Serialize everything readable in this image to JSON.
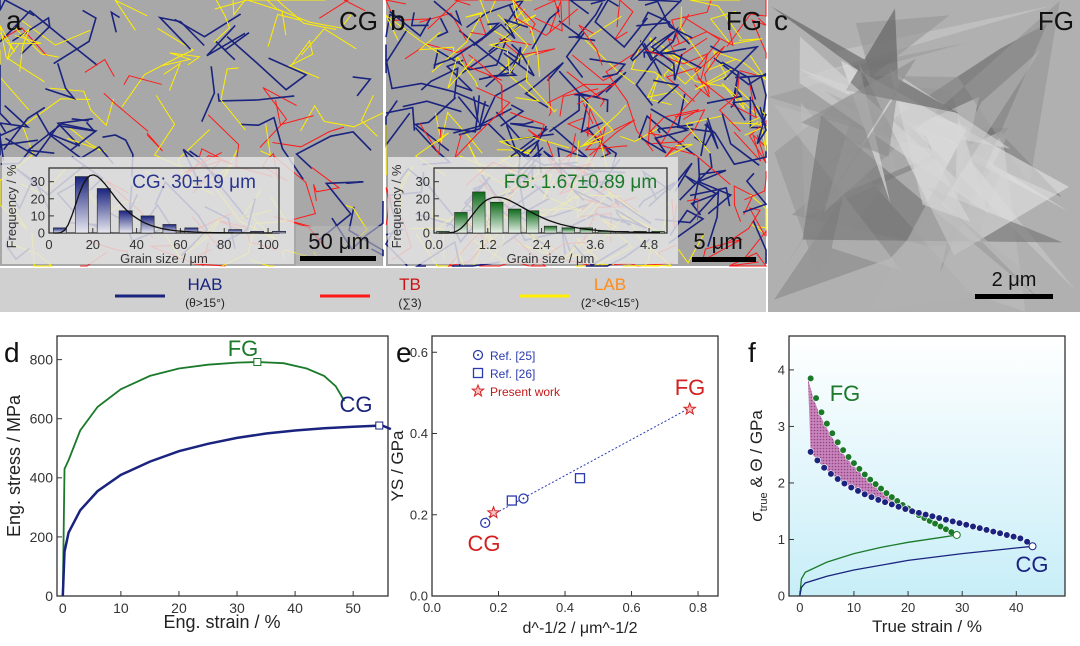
{
  "panels": {
    "a": "a",
    "b": "b",
    "c": "c",
    "d": "d",
    "e": "e",
    "f": "f"
  },
  "micrographs": [
    {
      "label": "CG",
      "scale_bar": "50 μm"
    },
    {
      "label": "FG",
      "scale_bar": "5 μm"
    },
    {
      "label": "FG",
      "scale_bar": "2 μm"
    }
  ],
  "legend": [
    {
      "name": "HAB",
      "sub": "(θ>15°)",
      "color": "#1a237e",
      "text_color": "#1a237e"
    },
    {
      "name": "TB",
      "sub": "(∑3)",
      "color": "#ff1a1a",
      "text_color": "#cc1111"
    },
    {
      "name": "LAB",
      "sub": "(2°<θ<15°)",
      "color": "#ffee00",
      "text_color": "#ff8c1a"
    }
  ],
  "chart_data": [
    {
      "id": "a-inset",
      "type": "bar",
      "annotation": "CG: 30±19 μm",
      "xlabel": "Grain size / μm",
      "ylabel": "Frequency / %",
      "xlim": [
        0,
        105
      ],
      "ylim": [
        0,
        38
      ],
      "xticks": [
        0,
        20,
        40,
        60,
        80,
        100
      ],
      "yticks": [
        0,
        10,
        20,
        30
      ],
      "bar_width": 6,
      "color": "#2a3590",
      "x": [
        5,
        15,
        25,
        35,
        45,
        55,
        65,
        85,
        95,
        105
      ],
      "values": [
        3,
        33,
        26,
        13,
        10,
        5,
        3,
        2,
        1,
        1
      ],
      "fit": {
        "type": "lognormal-like",
        "peak_x": 20,
        "peak_y": 34
      }
    },
    {
      "id": "b-inset",
      "type": "bar",
      "annotation": "FG: 1.67±0.89 μm",
      "xlabel": "Grain size / μm",
      "ylabel": "Frequency / %",
      "xlim": [
        0,
        5.2
      ],
      "ylim": [
        0,
        38
      ],
      "xticks": [
        "0.0",
        "1.2",
        "2.4",
        "3.6",
        "4.8"
      ],
      "yticks": [
        0,
        10,
        20,
        30
      ],
      "bar_width": 0.28,
      "color": "#1b7a2a",
      "x": [
        0.2,
        0.6,
        1.0,
        1.4,
        1.8,
        2.2,
        2.6,
        3.0,
        3.4,
        3.8,
        4.2,
        4.6,
        5.0
      ],
      "values": [
        1,
        12,
        24,
        18,
        14,
        13,
        4,
        3,
        3,
        1,
        1,
        1,
        1
      ],
      "fit": {
        "peak_x": 1.4,
        "peak_y": 21
      }
    },
    {
      "id": "d",
      "type": "line",
      "xlabel": "Eng. strain / %",
      "ylabel": "Eng. stress / MPa",
      "xlim": [
        -1,
        56
      ],
      "ylim": [
        0,
        880
      ],
      "xticks": [
        0,
        10,
        20,
        30,
        40,
        50
      ],
      "yticks": [
        0,
        200,
        400,
        600,
        800
      ],
      "series": [
        {
          "name": "FG",
          "color": "#1b7a2a",
          "points": [
            [
              0,
              0
            ],
            [
              0.3,
              430
            ],
            [
              1,
              460
            ],
            [
              3,
              560
            ],
            [
              6,
              640
            ],
            [
              10,
              700
            ],
            [
              15,
              745
            ],
            [
              20,
              770
            ],
            [
              25,
              783
            ],
            [
              30,
              790
            ],
            [
              33.5,
              792
            ],
            [
              38,
              788
            ],
            [
              42,
              770
            ],
            [
              45,
              745
            ],
            [
              47,
              710
            ],
            [
              48.5,
              660
            ]
          ],
          "marker": [
            33.5,
            792
          ]
        },
        {
          "name": "CG",
          "color": "#1a237e",
          "points": [
            [
              0,
              0
            ],
            [
              0.3,
              150
            ],
            [
              1,
              215
            ],
            [
              3,
              290
            ],
            [
              6,
              355
            ],
            [
              10,
              410
            ],
            [
              15,
              455
            ],
            [
              20,
              490
            ],
            [
              25,
              515
            ],
            [
              30,
              535
            ],
            [
              35,
              550
            ],
            [
              40,
              560
            ],
            [
              45,
              568
            ],
            [
              50,
              573
            ],
            [
              55,
              577
            ],
            [
              56.5,
              565
            ]
          ],
          "marker": [
            54.5,
            577
          ]
        }
      ]
    },
    {
      "id": "e",
      "type": "scatter",
      "xlabel": "d^-1/2 / μm^-1/2",
      "ylabel": "YS / GPa",
      "xlim": [
        0,
        0.86
      ],
      "ylim": [
        0,
        0.64
      ],
      "xticks": [
        "0.0",
        "0.2",
        "0.4",
        "0.6",
        "0.8"
      ],
      "yticks": [
        "0.0",
        "0.2",
        "0.4",
        "0.6"
      ],
      "legend_position": "top-left",
      "series": [
        {
          "name": "Ref. [25]",
          "marker": "circle",
          "color": "#2a3ab0",
          "points": [
            [
              0.16,
              0.18
            ],
            [
              0.275,
              0.24
            ]
          ]
        },
        {
          "name": "Ref. [26]",
          "marker": "square",
          "color": "#2a3ab0",
          "points": [
            [
              0.24,
              0.235
            ],
            [
              0.445,
              0.29
            ]
          ]
        },
        {
          "name": "Present work",
          "marker": "star",
          "color": "#d42020",
          "points": [
            [
              0.185,
              0.205
            ],
            [
              0.775,
              0.46
            ]
          ]
        }
      ],
      "fit_line": [
        [
          0.16,
          0.19
        ],
        [
          0.78,
          0.465
        ]
      ],
      "annotations": [
        {
          "text": "CG",
          "color": "#d42020"
        },
        {
          "text": "FG",
          "color": "#d42020"
        }
      ]
    },
    {
      "id": "f",
      "type": "line",
      "xlabel": "True strain / %",
      "ylabel_main": "σ",
      "ylabel_sub": "true",
      "ylabel_rest": " & Θ / GPa",
      "xlim": [
        -2,
        49
      ],
      "ylim": [
        0,
        4.6
      ],
      "xticks": [
        0,
        10,
        20,
        30,
        40
      ],
      "yticks": [
        0,
        1,
        2,
        3,
        4
      ],
      "series": [
        {
          "name": "FG",
          "color": "#1b7a2a",
          "kind": "hardening",
          "x_start": 2,
          "x_end": 28,
          "step": 1,
          "theta": [
            3.85,
            3.5,
            3.25,
            3.05,
            2.88,
            2.72,
            2.58,
            2.46,
            2.35,
            2.25,
            2.15,
            2.06,
            1.98,
            1.9,
            1.82,
            1.75,
            1.68,
            1.61,
            1.55,
            1.49,
            1.43,
            1.38,
            1.33,
            1.28,
            1.23,
            1.18,
            1.13
          ]
        },
        {
          "name": "CG",
          "color": "#1a237e",
          "kind": "hardening",
          "x_start": 2,
          "x_end": 42,
          "step": 1.25,
          "theta": [
            2.55,
            2.4,
            2.27,
            2.16,
            2.07,
            1.99,
            1.92,
            1.86,
            1.8,
            1.75,
            1.7,
            1.66,
            1.62,
            1.58,
            1.54,
            1.5,
            1.47,
            1.44,
            1.41,
            1.38,
            1.35,
            1.32,
            1.29,
            1.26,
            1.23,
            1.2,
            1.17,
            1.14,
            1.11,
            1.08,
            1.05,
            1.02,
            0.96
          ]
        },
        {
          "name": "FG stress",
          "color": "#1b7a2a",
          "kind": "stress",
          "points": [
            [
              0,
              0
            ],
            [
              0.3,
              0.3
            ],
            [
              1,
              0.42
            ],
            [
              5,
              0.6
            ],
            [
              10,
              0.75
            ],
            [
              15,
              0.86
            ],
            [
              20,
              0.95
            ],
            [
              25,
              1.02
            ],
            [
              29,
              1.08
            ]
          ],
          "end": [
            29,
            1.08
          ]
        },
        {
          "name": "CG stress",
          "color": "#1a237e",
          "kind": "stress",
          "points": [
            [
              0,
              0
            ],
            [
              0.3,
              0.15
            ],
            [
              1,
              0.23
            ],
            [
              5,
              0.35
            ],
            [
              10,
              0.46
            ],
            [
              20,
              0.63
            ],
            [
              30,
              0.75
            ],
            [
              38,
              0.83
            ],
            [
              43,
              0.88
            ]
          ],
          "end": [
            43,
            0.88
          ]
        }
      ],
      "annotations": [
        {
          "text": "FG",
          "color": "#1b7a2a"
        },
        {
          "text": "CG",
          "color": "#1a237e"
        }
      ],
      "shaded_region_color": "#a0307a"
    }
  ]
}
